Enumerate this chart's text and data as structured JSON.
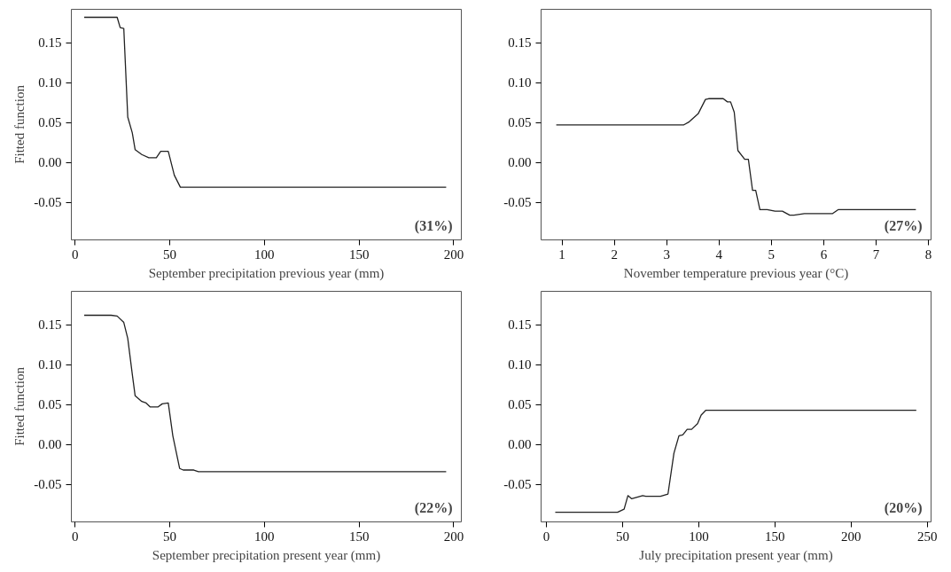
{
  "chart_data": [
    {
      "type": "line",
      "xlabel": "September precipitation previous year (mm)",
      "ylabel": "Fitted function",
      "annotations": [
        "(31%)"
      ],
      "xlim": [
        -2,
        204
      ],
      "ylim": [
        -0.097,
        0.192
      ],
      "xticks": [
        0,
        50,
        100,
        150,
        200
      ],
      "yticks": [
        {
          "value": -0.05,
          "label": "-0.05"
        },
        {
          "value": 0,
          "label": "0.00"
        },
        {
          "value": 0.05,
          "label": "0.05"
        },
        {
          "value": 0.1,
          "label": "0.10"
        },
        {
          "value": 0.15,
          "label": "0.15"
        }
      ],
      "grid": false,
      "series": [
        {
          "color": "#222222",
          "x": [
            4.8,
            22.2,
            23.8,
            25.7,
            27.8,
            30.2,
            31.7,
            35.2,
            38.9,
            42.9,
            45.2,
            49.2,
            52.4,
            55.6,
            196
          ],
          "values": [
            0.182,
            0.182,
            0.169,
            0.168,
            0.057,
            0.037,
            0.016,
            0.01,
            0.006,
            0.006,
            0.014,
            0.014,
            -0.016,
            -0.031,
            -0.031
          ]
        }
      ]
    },
    {
      "type": "line",
      "xlabel": "November temperature previous year (°C)",
      "annotations": [
        "(27%)"
      ],
      "xlim": [
        0.6,
        8.05
      ],
      "ylim": [
        -0.097,
        0.192
      ],
      "xticks": [
        1,
        2,
        3,
        4,
        5,
        6,
        7,
        8
      ],
      "yticks": [
        {
          "value": -0.05,
          "label": "-0.05"
        },
        {
          "value": 0,
          "label": "0.00"
        },
        {
          "value": 0.05,
          "label": "0.05"
        },
        {
          "value": 0.1,
          "label": "0.10"
        },
        {
          "value": 0.15,
          "label": "0.15"
        }
      ],
      "grid": false,
      "series": [
        {
          "color": "#222222",
          "x": [
            0.89,
            3.32,
            3.43,
            3.6,
            3.74,
            3.8,
            4.08,
            4.16,
            4.22,
            4.29,
            4.36,
            4.49,
            4.56,
            4.64,
            4.7,
            4.78,
            4.92,
            5.07,
            5.21,
            5.35,
            5.43,
            5.63,
            6.17,
            6.28,
            7.76
          ],
          "values": [
            0.047,
            0.047,
            0.051,
            0.061,
            0.079,
            0.08,
            0.08,
            0.076,
            0.076,
            0.063,
            0.015,
            0.004,
            0.004,
            -0.035,
            -0.035,
            -0.059,
            -0.059,
            -0.061,
            -0.061,
            -0.066,
            -0.066,
            -0.064,
            -0.064,
            -0.059,
            -0.059
          ]
        }
      ]
    },
    {
      "type": "line",
      "xlabel": "September precipitation present year (mm)",
      "ylabel": "Fitted function",
      "annotations": [
        "(22%)"
      ],
      "xlim": [
        -2,
        204
      ],
      "ylim": [
        -0.097,
        0.192
      ],
      "xticks": [
        0,
        50,
        100,
        150,
        200
      ],
      "yticks": [
        {
          "value": -0.05,
          "label": "-0.05"
        },
        {
          "value": 0,
          "label": "0.00"
        },
        {
          "value": 0.05,
          "label": "0.05"
        },
        {
          "value": 0.1,
          "label": "0.10"
        },
        {
          "value": 0.15,
          "label": "0.15"
        }
      ],
      "grid": false,
      "series": [
        {
          "color": "#222222",
          "x": [
            4.8,
            19,
            22.2,
            25.7,
            27.8,
            30.2,
            31.7,
            35.2,
            37.5,
            39.7,
            43.7,
            46,
            49.2,
            51.6,
            55.2,
            57.1,
            62.7,
            65.1,
            196
          ],
          "values": [
            0.162,
            0.162,
            0.161,
            0.153,
            0.133,
            0.088,
            0.061,
            0.054,
            0.052,
            0.047,
            0.047,
            0.051,
            0.052,
            0.011,
            -0.03,
            -0.032,
            -0.032,
            -0.034,
            -0.034
          ]
        }
      ]
    },
    {
      "type": "line",
      "xlabel": "July precipitation present year (mm)",
      "annotations": [
        "(20%)"
      ],
      "xlim": [
        -3.5,
        252.5
      ],
      "ylim": [
        -0.097,
        0.192
      ],
      "xticks": [
        0,
        50,
        100,
        150,
        200,
        250
      ],
      "yticks": [
        {
          "value": -0.05,
          "label": "-0.05"
        },
        {
          "value": 0,
          "label": "0.00"
        },
        {
          "value": 0.05,
          "label": "0.05"
        },
        {
          "value": 0.1,
          "label": "0.10"
        },
        {
          "value": 0.15,
          "label": "0.15"
        }
      ],
      "grid": false,
      "series": [
        {
          "color": "#222222",
          "x": [
            5.8,
            46.7,
            51,
            53.5,
            56,
            63.2,
            65.2,
            74.9,
            79.8,
            83.7,
            87,
            89.5,
            92.4,
            95.3,
            99.2,
            101.6,
            104.7,
            242.8
          ],
          "values": [
            -0.085,
            -0.085,
            -0.081,
            -0.064,
            -0.068,
            -0.064,
            -0.065,
            -0.065,
            -0.062,
            -0.011,
            0.011,
            0.012,
            0.019,
            0.019,
            0.026,
            0.037,
            0.043,
            0.043
          ]
        }
      ]
    }
  ]
}
